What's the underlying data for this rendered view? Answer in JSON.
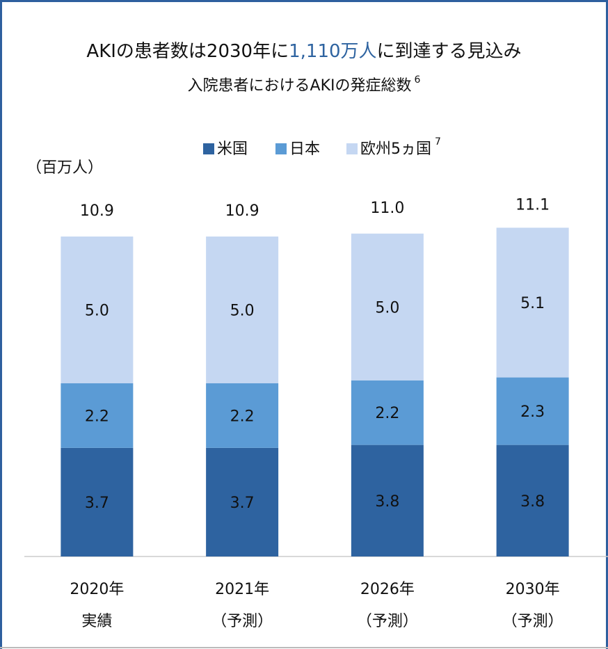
{
  "chart_data": {
    "type": "stacked_bar",
    "title_parts": [
      "AKIの患者数は2030年に",
      "1,110万人",
      "に到達する見込み"
    ],
    "title_highlight_color": "#2e63a0",
    "subtitle": "入院患者におけるAKIの発症総数",
    "subtitle_note": "6",
    "y_unit": "（百万人）",
    "legend_note": "7",
    "categories": [
      [
        "2020年",
        "実績"
      ],
      [
        "2021年",
        "（予測）"
      ],
      [
        "2026年",
        "（予測）"
      ],
      [
        "2030年",
        "（予測）"
      ]
    ],
    "series": [
      {
        "name": "米国",
        "color": "#2e63a0",
        "label_color": "#ffffff",
        "values": [
          3.7,
          3.7,
          3.8,
          3.8
        ],
        "value_labels": [
          "3.7",
          "3.7",
          "3.8",
          "3.8"
        ]
      },
      {
        "name": "日本",
        "color": "#5b9bd5",
        "label_color": "#ffffff",
        "values": [
          2.2,
          2.2,
          2.2,
          2.3
        ],
        "value_labels": [
          "2.2",
          "2.2",
          "2.2",
          "2.3"
        ]
      },
      {
        "name": "欧州5ヵ国",
        "color": "#c5d7f2",
        "label_color": "#000000",
        "values": [
          5,
          5,
          5,
          5.1
        ],
        "value_labels": [
          "5.0",
          "5.0",
          "5.0",
          "5.1"
        ]
      }
    ],
    "totals": [
      10.9,
      10.9,
      11,
      11.1
    ],
    "total_labels": [
      "10.9",
      "10.9",
      "11.0",
      "11.1"
    ],
    "ylim": [
      0,
      12
    ]
  }
}
